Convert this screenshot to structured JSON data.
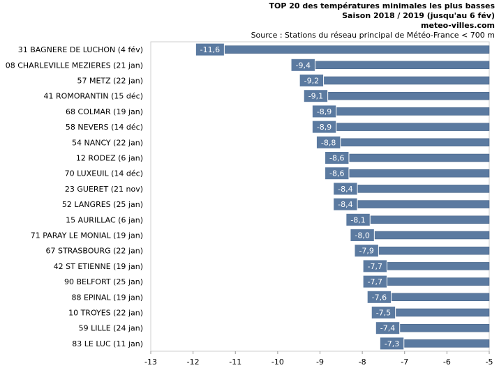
{
  "header": {
    "title": "TOP 20 des températures minimales les plus basses",
    "subtitle": "Saison 2018 / 2019 (jusqu'au 6 fév)",
    "site": "meteo-villes.com",
    "source": "Source : Stations du réseau principal de Météo-France < 700 m"
  },
  "colors": {
    "bar": "#5b7aa0",
    "bar_edge": "#3f5c80",
    "label_box": "#5b7aa0",
    "plot_border": "#cfcfcf"
  },
  "chart_data": {
    "type": "bar",
    "orientation": "horizontal",
    "title": "TOP 20 des températures minimales les plus basses",
    "subtitle": "Saison 2018 / 2019 (jusqu'au 6 fév)",
    "categories": [
      "31 BAGNERE DE LUCHON (4 fév)",
      "08 CHARLEVILLE MEZIERES (21 jan)",
      "57 METZ (22 jan)",
      "41 ROMORANTIN (15 déc)",
      "68 COLMAR (19 jan)",
      "58 NEVERS (14 déc)",
      "54 NANCY (22 jan)",
      "12 RODEZ (6 jan)",
      "70 LUXEUIL (14 déc)",
      "23 GUERET (21 nov)",
      "52 LANGRES (25 jan)",
      "15 AURILLAC (6 jan)",
      "71 PARAY LE MONIAL (19 jan)",
      "67 STRASBOURG (22 jan)",
      "42 ST ETIENNE (19 jan)",
      "90 BELFORT (25 jan)",
      "88 EPINAL (19 jan)",
      "10 TROYES (22 jan)",
      "59 LILLE (24 jan)",
      "83 LE LUC (11 jan)"
    ],
    "values": [
      -11.6,
      -9.4,
      -9.2,
      -9.1,
      -8.9,
      -8.9,
      -8.8,
      -8.6,
      -8.6,
      -8.4,
      -8.4,
      -8.1,
      -8.0,
      -7.9,
      -7.7,
      -7.7,
      -7.6,
      -7.5,
      -7.4,
      -7.3
    ],
    "value_labels": [
      "-11,6",
      "-9,4",
      "-9,2",
      "-9,1",
      "-8,9",
      "-8,9",
      "-8,8",
      "-8,6",
      "-8,6",
      "-8,4",
      "-8,4",
      "-8,1",
      "-8,0",
      "-7,9",
      "-7,7",
      "-7,7",
      "-7,6",
      "-7,5",
      "-7,4",
      "-7,3"
    ],
    "xlim": [
      -13,
      -5
    ],
    "x_ticks": [
      -13,
      -12,
      -11,
      -10,
      -9,
      -8,
      -7,
      -6,
      -5
    ],
    "x_tick_labels": [
      "-13",
      "-12",
      "-11",
      "-10",
      "-9",
      "-8",
      "-7",
      "-6",
      "-5"
    ],
    "grid": false,
    "legend": "none"
  }
}
